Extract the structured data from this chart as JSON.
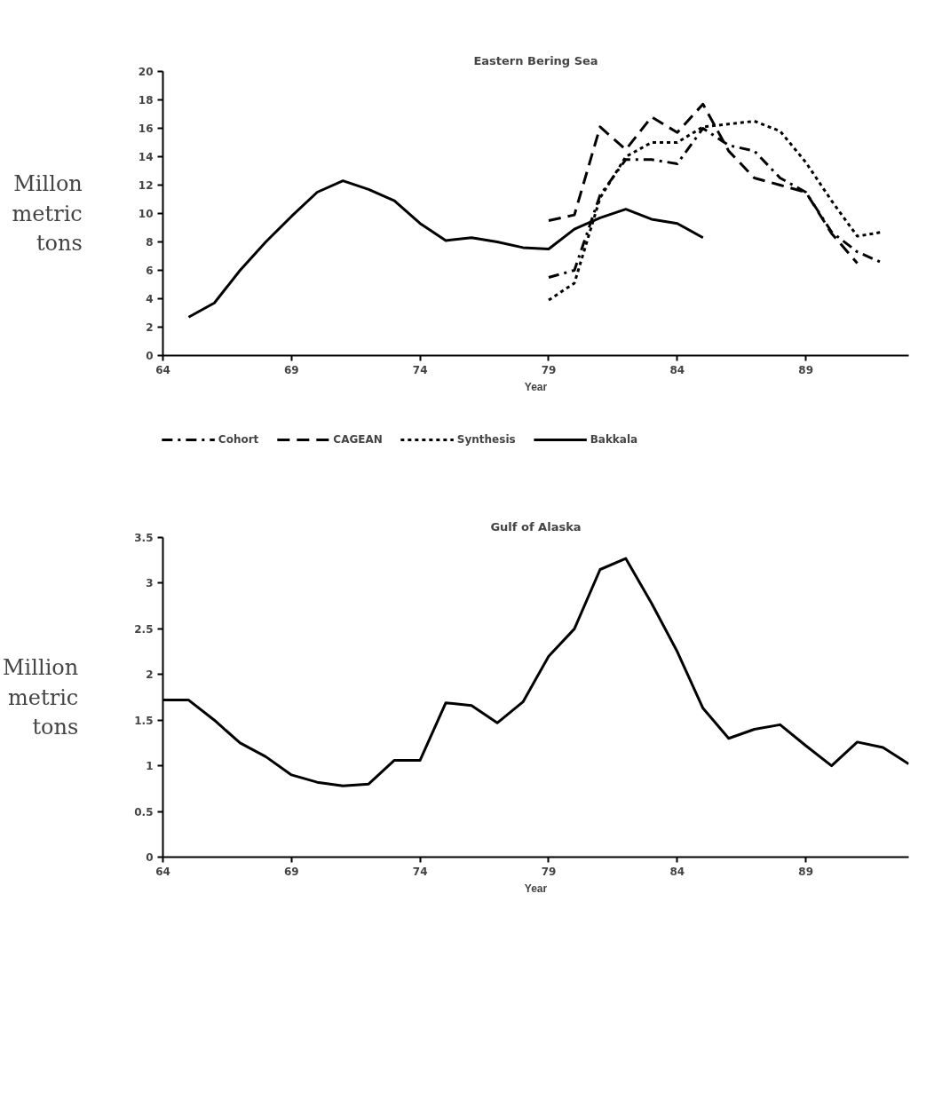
{
  "chart_data": [
    {
      "type": "line",
      "title": "Eastern Bering Sea",
      "xlabel": "Year",
      "ylabel": "Millon\nmetric\ntons",
      "xlim": [
        64,
        93
      ],
      "xticks": [
        64,
        69,
        74,
        79,
        84,
        89
      ],
      "ylim": [
        0,
        20
      ],
      "yticks": [
        0,
        2,
        4,
        6,
        8,
        10,
        12,
        14,
        16,
        18,
        20
      ],
      "grid": false,
      "legend": "bottom",
      "series": [
        {
          "name": "Cohort",
          "color": "#000000",
          "line_style": "dashdot",
          "x": [
            79,
            80,
            81,
            82,
            83,
            84,
            85,
            86,
            87,
            88,
            89,
            90,
            91,
            92
          ],
          "values": [
            5.5,
            6.0,
            11.3,
            13.8,
            13.8,
            13.5,
            16.0,
            14.8,
            14.4,
            12.5,
            11.5,
            8.7,
            7.3,
            6.5
          ]
        },
        {
          "name": "CAGEAN",
          "color": "#000000",
          "line_style": "dashed",
          "x": [
            79,
            80,
            81,
            82,
            83,
            84,
            85,
            86,
            87,
            88,
            89,
            90,
            91
          ],
          "values": [
            9.5,
            9.9,
            16.1,
            14.5,
            16.8,
            15.7,
            17.7,
            14.4,
            12.5,
            12.0,
            11.5,
            8.6,
            6.5
          ]
        },
        {
          "name": "Synthesis",
          "color": "#000000",
          "line_style": "dotted",
          "x": [
            79,
            80,
            81,
            82,
            83,
            84,
            85,
            86,
            87,
            88,
            89,
            90,
            91,
            92
          ],
          "values": [
            3.9,
            5.1,
            11.1,
            14.0,
            15.0,
            15.0,
            16.1,
            16.3,
            16.5,
            15.8,
            13.6,
            10.9,
            8.4,
            8.7
          ]
        },
        {
          "name": "Bakkala",
          "color": "#000000",
          "line_style": "solid",
          "x": [
            65,
            66,
            67,
            68,
            69,
            70,
            71,
            72,
            73,
            74,
            75,
            76,
            77,
            78,
            79,
            80,
            81,
            82,
            83,
            84,
            85
          ],
          "values": [
            2.7,
            3.7,
            6.0,
            8.0,
            9.8,
            11.5,
            12.3,
            11.7,
            10.9,
            9.3,
            8.1,
            8.3,
            8.0,
            7.6,
            7.5,
            8.9,
            9.7,
            10.3,
            9.6,
            9.3,
            8.3
          ]
        }
      ]
    },
    {
      "type": "line",
      "title": "Gulf of Alaska",
      "xlabel": "Year",
      "ylabel": "Million\nmetric\ntons",
      "xlim": [
        64,
        93
      ],
      "xticks": [
        64,
        69,
        74,
        79,
        84,
        89
      ],
      "ylim": [
        0,
        3.5
      ],
      "yticks": [
        0,
        0.5,
        1,
        1.5,
        2,
        2.5,
        3,
        3.5
      ],
      "grid": false,
      "legend": false,
      "series": [
        {
          "color": "#000000",
          "line_style": "solid",
          "x": [
            64,
            65,
            66,
            67,
            68,
            69,
            70,
            71,
            72,
            73,
            74,
            75,
            76,
            77,
            78,
            79,
            80,
            81,
            82,
            83,
            84,
            85,
            86,
            87,
            88,
            89,
            90,
            91,
            92,
            93
          ],
          "values": [
            1.72,
            1.72,
            1.5,
            1.25,
            1.1,
            0.9,
            0.82,
            0.78,
            0.8,
            1.06,
            1.06,
            1.69,
            1.66,
            1.47,
            1.7,
            2.2,
            2.5,
            3.15,
            3.27,
            2.78,
            2.25,
            1.63,
            1.3,
            1.4,
            1.45,
            1.22,
            1.0,
            1.26,
            1.2,
            1.02
          ]
        }
      ]
    }
  ]
}
